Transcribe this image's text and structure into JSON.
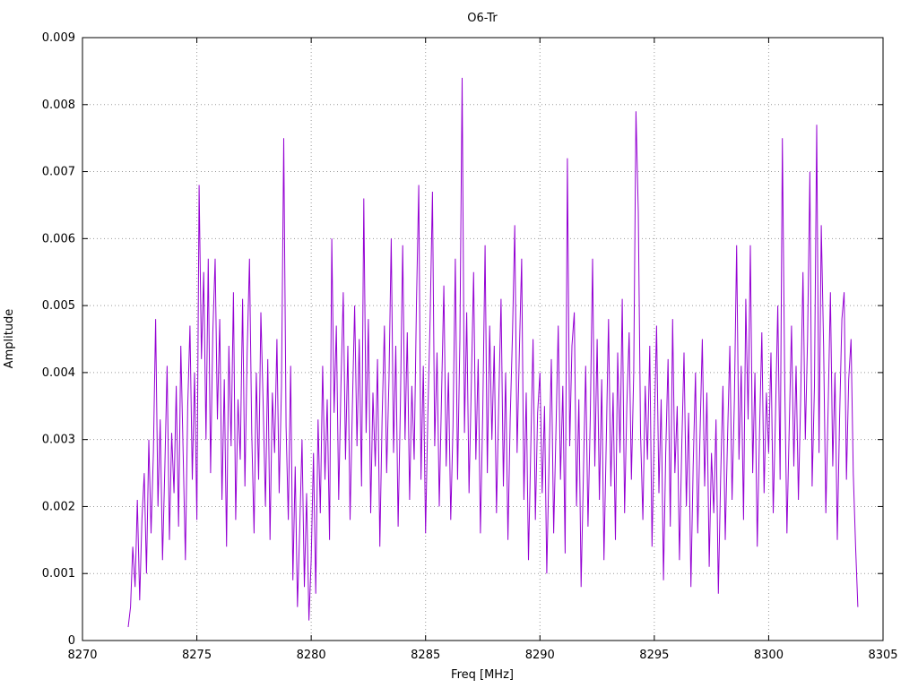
{
  "chart_data": {
    "type": "line",
    "title": "O6-Tr",
    "xlabel": "Freq [MHz]",
    "ylabel": "Amplitude",
    "xlim": [
      8270,
      8305
    ],
    "ylim": [
      0,
      0.009
    ],
    "x_ticks": [
      8270,
      8275,
      8280,
      8285,
      8290,
      8295,
      8300,
      8305
    ],
    "x_tick_labels": [
      "8270",
      "8275",
      "8280",
      "8285",
      "8290",
      "8295",
      "8300",
      "8305"
    ],
    "y_ticks": [
      0,
      0.001,
      0.002,
      0.003,
      0.004,
      0.005,
      0.006,
      0.007,
      0.008,
      0.009
    ],
    "y_tick_labels": [
      "0",
      "0.001",
      "0.002",
      "0.003",
      "0.004",
      "0.005",
      "0.006",
      "0.007",
      "0.008",
      "0.009"
    ],
    "grid": "dotted",
    "legend_position": "none",
    "colors": {
      "line": "#9400d3",
      "grid": "#999999",
      "axis": "#000000",
      "background": "#ffffff"
    },
    "series": [
      {
        "name": "O6-Tr",
        "x_start": 8272.0,
        "x_step": 0.1,
        "y_scale": 0.0001,
        "y_values_1e4": [
          2,
          5,
          14,
          8,
          21,
          6,
          18,
          25,
          10,
          30,
          16,
          28,
          48,
          20,
          33,
          12,
          26,
          41,
          15,
          31,
          22,
          38,
          17,
          44,
          28,
          12,
          35,
          47,
          24,
          40,
          18,
          68,
          42,
          55,
          30,
          57,
          25,
          46,
          57,
          33,
          48,
          21,
          39,
          14,
          44,
          29,
          52,
          18,
          36,
          27,
          51,
          23,
          43,
          57,
          31,
          16,
          40,
          24,
          49,
          35,
          20,
          42,
          15,
          37,
          28,
          45,
          22,
          38,
          75,
          32,
          18,
          41,
          9,
          26,
          5,
          17,
          30,
          8,
          22,
          3,
          12,
          28,
          7,
          33,
          19,
          41,
          24,
          36,
          15,
          60,
          34,
          47,
          21,
          38,
          52,
          27,
          44,
          18,
          35,
          50,
          29,
          45,
          23,
          66,
          31,
          48,
          19,
          37,
          26,
          42,
          14,
          33,
          47,
          25,
          39,
          60,
          28,
          44,
          17,
          35,
          59,
          30,
          46,
          21,
          38,
          27,
          50,
          68,
          24,
          41,
          16,
          34,
          48,
          67,
          29,
          43,
          20,
          37,
          53,
          26,
          40,
          18,
          32,
          57,
          24,
          45,
          84,
          31,
          49,
          22,
          38,
          55,
          27,
          42,
          16,
          34,
          59,
          25,
          47,
          30,
          44,
          19,
          36,
          51,
          23,
          40,
          15,
          33,
          46,
          62,
          28,
          43,
          57,
          21,
          37,
          12,
          29,
          45,
          18,
          34,
          40,
          22,
          35,
          10,
          27,
          42,
          16,
          31,
          47,
          24,
          38,
          13,
          72,
          29,
          44,
          49,
          20,
          36,
          8,
          25,
          41,
          17,
          33,
          57,
          26,
          45,
          21,
          39,
          12,
          30,
          48,
          23,
          37,
          15,
          43,
          28,
          51,
          19,
          35,
          46,
          24,
          40,
          79,
          64,
          31,
          18,
          38,
          27,
          44,
          14,
          32,
          47,
          22,
          36,
          9,
          28,
          42,
          17,
          48,
          25,
          35,
          12,
          29,
          43,
          20,
          34,
          8,
          26,
          40,
          16,
          31,
          45,
          23,
          37,
          11,
          28,
          19,
          33,
          7,
          24,
          38,
          15,
          30,
          44,
          21,
          36,
          59,
          27,
          41,
          18,
          51,
          33,
          59,
          25,
          40,
          14,
          31,
          46,
          22,
          37,
          28,
          43,
          19,
          34,
          50,
          24,
          75,
          39,
          16,
          32,
          47,
          26,
          41,
          21,
          36,
          55,
          30,
          45,
          70,
          23,
          38,
          77,
          28,
          62,
          44,
          19,
          35,
          52,
          26,
          40,
          15,
          33,
          48,
          52,
          24,
          39,
          45,
          25,
          14,
          5
        ]
      }
    ]
  }
}
